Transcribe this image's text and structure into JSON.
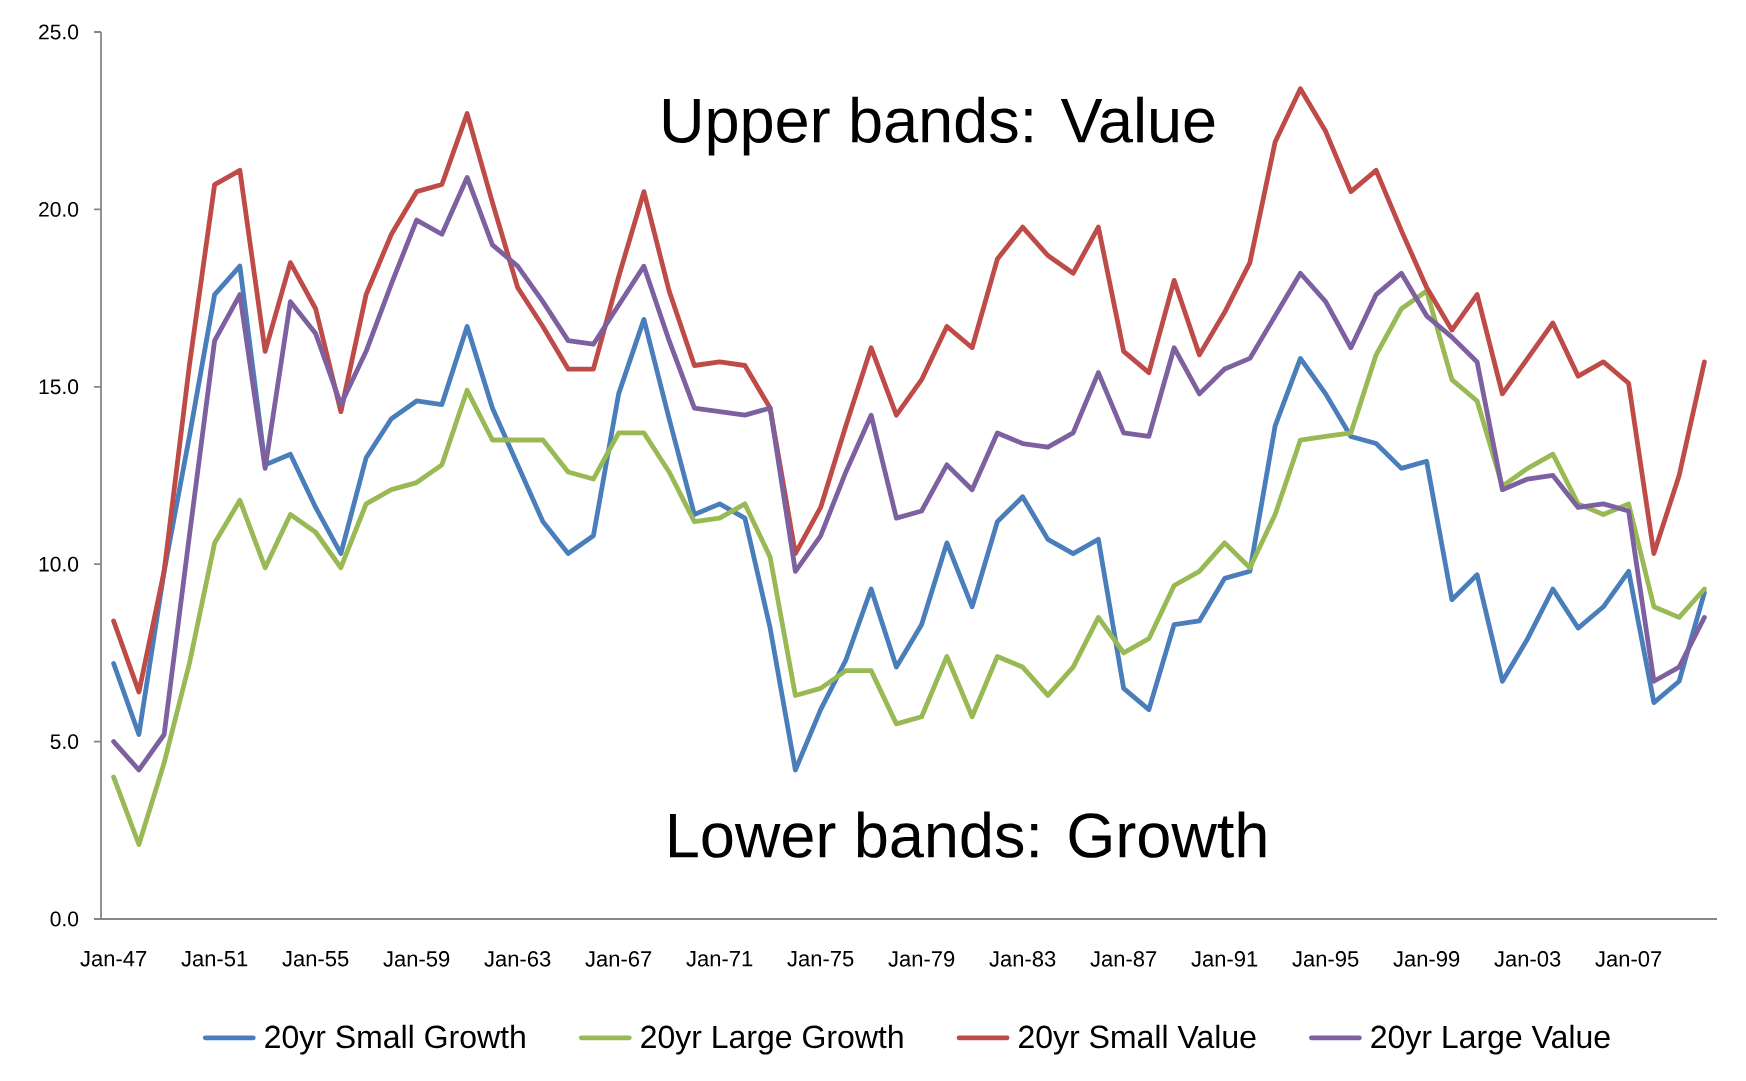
{
  "chart_data": {
    "type": "line",
    "categories": [
      "Jan-47",
      null,
      null,
      null,
      "Jan-51",
      null,
      null,
      null,
      "Jan-55",
      null,
      null,
      null,
      "Jan-59",
      null,
      null,
      null,
      "Jan-63",
      null,
      null,
      null,
      "Jan-67",
      null,
      null,
      null,
      "Jan-71",
      null,
      null,
      null,
      "Jan-75",
      null,
      null,
      null,
      "Jan-79",
      null,
      null,
      null,
      "Jan-83",
      null,
      null,
      null,
      "Jan-87",
      null,
      null,
      null,
      "Jan-91",
      null,
      null,
      null,
      "Jan-95",
      null,
      null,
      null,
      "Jan-99",
      null,
      null,
      null,
      "Jan-03",
      null,
      null,
      null,
      "Jan-07",
      null,
      null,
      null
    ],
    "series": [
      {
        "name": "20yr Small Growth",
        "color": "#4a7ebb",
        "values": [
          7.2,
          5.2,
          9.8,
          13.6,
          17.6,
          18.4,
          12.8,
          13.1,
          11.6,
          10.3,
          13.0,
          14.1,
          14.6,
          14.5,
          16.7,
          14.4,
          12.8,
          11.2,
          10.3,
          10.8,
          14.8,
          16.9,
          14.1,
          11.4,
          11.7,
          11.3,
          8.2,
          4.2,
          5.9,
          7.3,
          9.3,
          7.1,
          8.3,
          10.6,
          8.8,
          11.2,
          11.9,
          10.7,
          10.3,
          10.7,
          6.5,
          5.9,
          8.3,
          8.4,
          9.6,
          9.8,
          13.9,
          15.8,
          14.8,
          13.6,
          13.4,
          12.7,
          12.9,
          9.0,
          9.7,
          6.7,
          7.9,
          9.3,
          8.2,
          8.8,
          9.8,
          6.1,
          6.7,
          9.2
        ]
      },
      {
        "name": "20yr Large Growth",
        "color": "#98b954",
        "values": [
          4.0,
          2.1,
          4.4,
          7.2,
          10.6,
          11.8,
          9.9,
          11.4,
          10.9,
          9.9,
          11.7,
          12.1,
          12.3,
          12.8,
          14.9,
          13.5,
          13.5,
          13.5,
          12.6,
          12.4,
          13.7,
          13.7,
          12.6,
          11.2,
          11.3,
          11.7,
          10.2,
          6.3,
          6.5,
          7.0,
          7.0,
          5.5,
          5.7,
          7.4,
          5.7,
          7.4,
          7.1,
          6.3,
          7.1,
          8.5,
          7.5,
          7.9,
          9.4,
          9.8,
          10.6,
          9.9,
          11.4,
          13.5,
          13.6,
          13.7,
          15.9,
          17.2,
          17.7,
          15.2,
          14.6,
          12.2,
          12.7,
          13.1,
          11.7,
          11.4,
          11.7,
          8.8,
          8.5,
          9.3
        ]
      },
      {
        "name": "20yr Small Value",
        "color": "#be4b48",
        "values": [
          8.4,
          6.4,
          9.8,
          15.6,
          20.7,
          21.1,
          16.0,
          18.5,
          17.2,
          14.3,
          17.6,
          19.3,
          20.5,
          20.7,
          22.7,
          20.2,
          17.8,
          16.7,
          15.5,
          15.5,
          18.1,
          20.5,
          17.7,
          15.6,
          15.7,
          15.6,
          14.4,
          10.3,
          11.6,
          13.9,
          16.1,
          14.2,
          15.2,
          16.7,
          16.1,
          18.6,
          19.5,
          18.7,
          18.2,
          19.5,
          16.0,
          15.4,
          18.0,
          15.9,
          17.1,
          18.5,
          21.9,
          23.4,
          22.2,
          20.5,
          21.1,
          19.4,
          17.8,
          16.6,
          17.6,
          14.8,
          15.8,
          16.8,
          15.3,
          15.7,
          15.1,
          10.3,
          12.5,
          15.7
        ]
      },
      {
        "name": "20yr Large Value",
        "color": "#7d60a0",
        "values": [
          5.0,
          4.2,
          5.2,
          10.8,
          16.3,
          17.6,
          12.7,
          17.4,
          16.5,
          14.5,
          16.0,
          17.9,
          19.7,
          19.3,
          20.9,
          19.0,
          18.4,
          17.4,
          16.3,
          16.2,
          17.3,
          18.4,
          16.3,
          14.4,
          14.3,
          14.2,
          14.4,
          9.8,
          10.8,
          12.6,
          14.2,
          11.3,
          11.5,
          12.8,
          12.1,
          13.7,
          13.4,
          13.3,
          13.7,
          15.4,
          13.7,
          13.6,
          16.1,
          14.8,
          15.5,
          15.8,
          17.0,
          18.2,
          17.4,
          16.1,
          17.6,
          18.2,
          17.0,
          16.4,
          15.7,
          12.1,
          12.4,
          12.5,
          11.6,
          11.7,
          11.5,
          6.7,
          7.1,
          8.5
        ]
      }
    ],
    "ylim": [
      0,
      25
    ],
    "yticks": [
      {
        "value": 0,
        "label": "0.0"
      },
      {
        "value": 5,
        "label": "5.0"
      },
      {
        "value": 10,
        "label": "10.0"
      },
      {
        "value": 15,
        "label": "15.0"
      },
      {
        "value": 20,
        "label": "20.0"
      },
      {
        "value": 25,
        "label": "25.0"
      }
    ],
    "annotations": [
      "Upper bands: Value",
      "Lower bands: Growth"
    ],
    "legend": "bottom"
  }
}
